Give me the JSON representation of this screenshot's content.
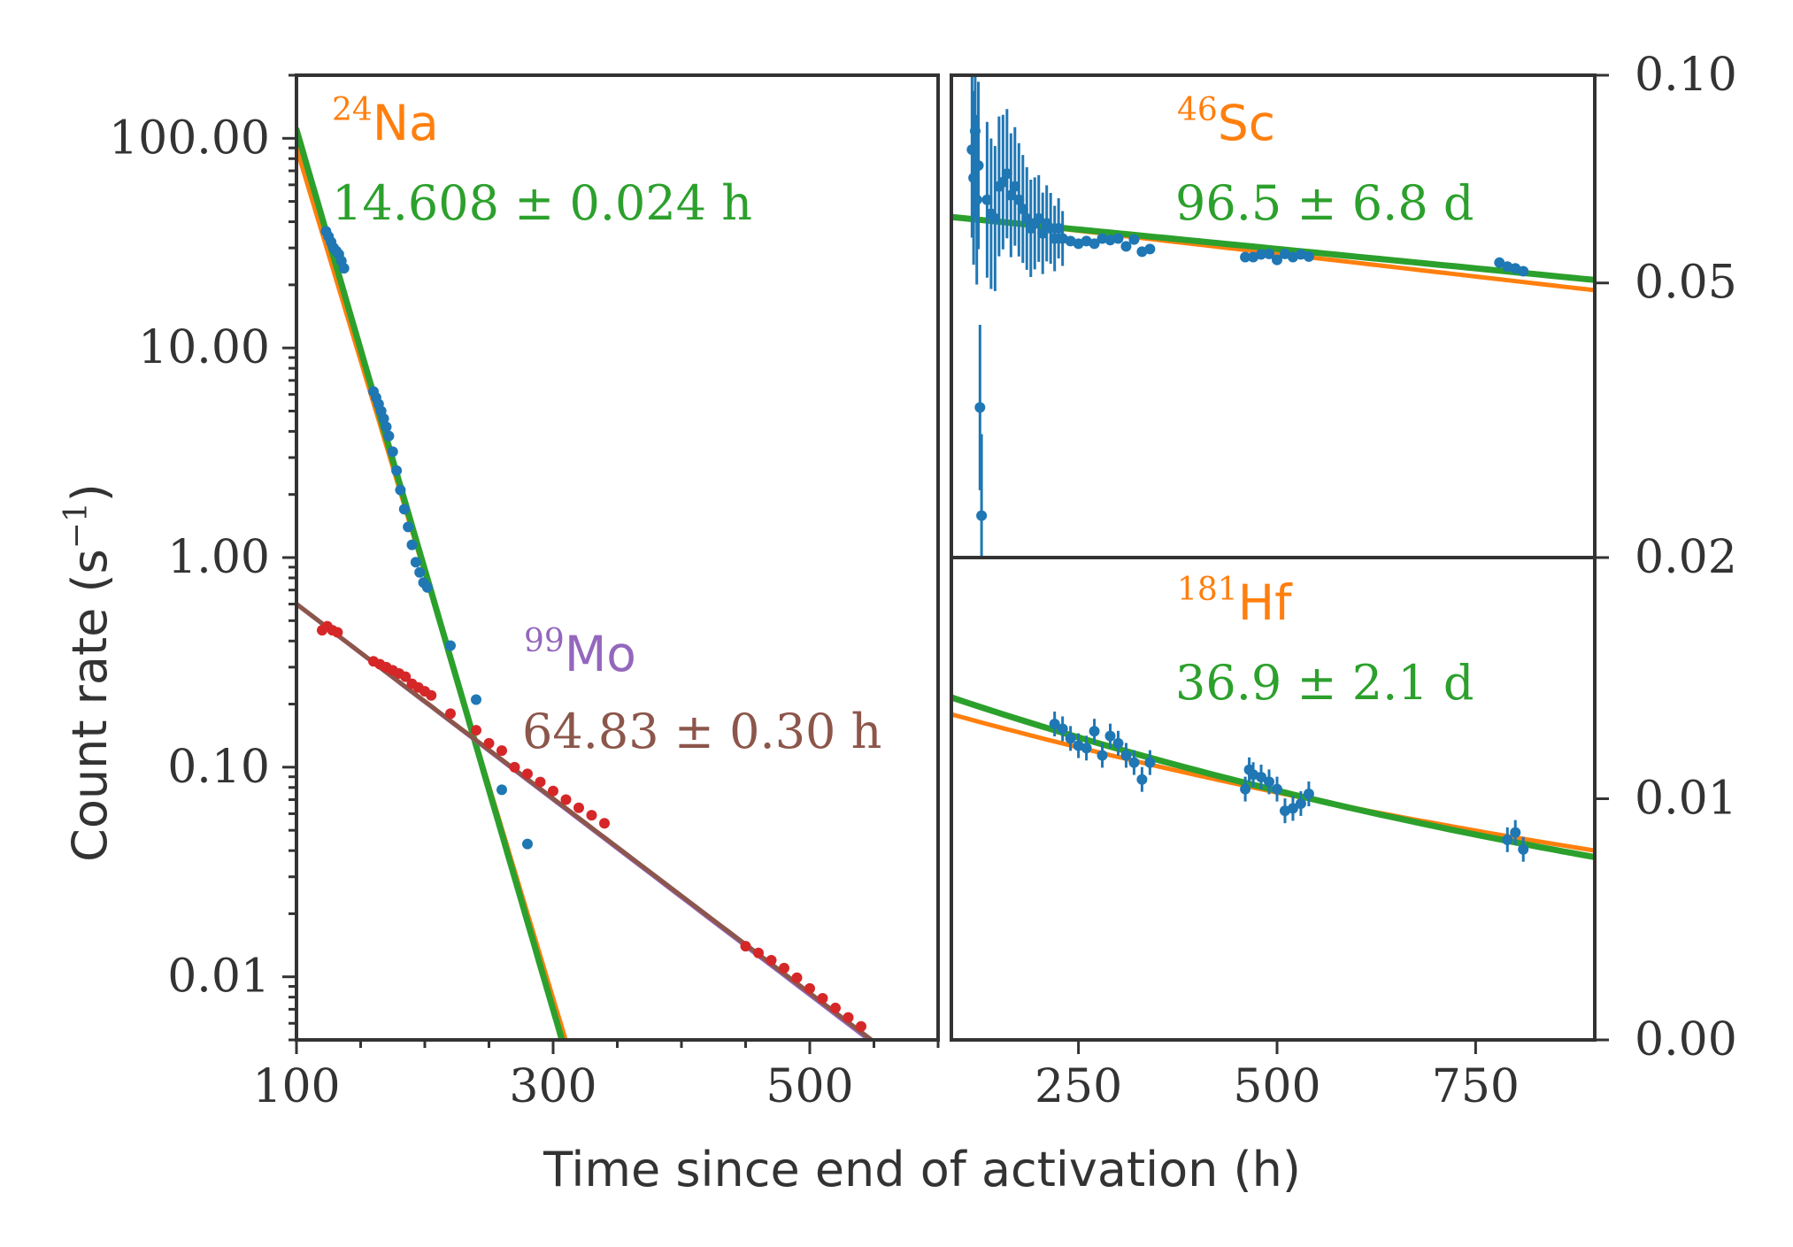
{
  "colors": {
    "blue": "#1f77b4",
    "red": "#d62728",
    "orange": "#ff7f0e",
    "green": "#2ca02c",
    "purple": "#9467bd",
    "brown": "#8c564b",
    "axis": "#333333"
  },
  "figure": {
    "xlabel": "Time since end of activation (h)",
    "ylabel": "Count rate (s",
    "ylabel_sup": "−1",
    "ylabel_close": ")"
  },
  "chart_data": [
    {
      "panel": "left",
      "type": "scatter",
      "xlim": [
        100,
        600
      ],
      "ylim": [
        0.005,
        200
      ],
      "yscale": "log",
      "x_ticks": [
        100,
        300,
        500
      ],
      "x_tick_labels": [
        "100",
        "300",
        "500"
      ],
      "y_ticks": [
        100,
        10,
        1,
        0.1,
        0.01
      ],
      "y_tick_labels": [
        "100.00",
        "10.00",
        "1.00",
        "0.10",
        "0.01"
      ],
      "annotations": [
        {
          "isotope_mass": "24",
          "isotope_symbol": "Na",
          "half_life": "14.608 ± 0.024 h"
        },
        {
          "isotope_mass": "99",
          "isotope_symbol": "Mo",
          "half_life": "64.83 ± 0.30 h"
        }
      ],
      "series": [
        {
          "name": "24Na data",
          "color": "blue",
          "x": [
            123,
            125,
            127,
            129,
            131,
            133,
            135,
            137,
            160,
            162,
            164,
            166,
            168,
            170,
            172,
            175,
            178,
            181,
            184,
            187,
            190,
            193,
            196,
            199,
            202,
            220,
            240,
            260,
            280
          ],
          "y": [
            36,
            34,
            32,
            30,
            29,
            28,
            26,
            24,
            6.2,
            5.8,
            5.4,
            5.0,
            4.6,
            4.2,
            3.8,
            3.2,
            2.6,
            2.1,
            1.7,
            1.4,
            1.15,
            0.95,
            0.85,
            0.76,
            0.72,
            0.38,
            0.21,
            0.078,
            0.043
          ]
        },
        {
          "name": "99Mo data",
          "color": "red",
          "x": [
            120,
            124,
            128,
            132,
            160,
            165,
            170,
            175,
            180,
            185,
            190,
            195,
            200,
            205,
            220,
            240,
            250,
            260,
            270,
            280,
            290,
            300,
            310,
            320,
            330,
            340,
            450,
            460,
            470,
            480,
            490,
            500,
            510,
            520,
            530,
            540
          ],
          "y": [
            0.45,
            0.47,
            0.45,
            0.44,
            0.32,
            0.31,
            0.3,
            0.29,
            0.28,
            0.27,
            0.25,
            0.24,
            0.23,
            0.22,
            0.18,
            0.15,
            0.13,
            0.12,
            0.1,
            0.093,
            0.085,
            0.077,
            0.07,
            0.064,
            0.059,
            0.054,
            0.014,
            0.013,
            0.012,
            0.011,
            0.0099,
            0.0088,
            0.0079,
            0.0071,
            0.0064,
            0.0058
          ]
        },
        {
          "name": "24Na fit (orange)",
          "color": "orange",
          "fit_line": true,
          "x": [
            100,
            313
          ],
          "y": [
            90,
            0.0043
          ]
        },
        {
          "name": "24Na fit (green)",
          "color": "green",
          "fit_line": true,
          "x": [
            100,
            310
          ],
          "y": [
            110,
            0.0043
          ]
        },
        {
          "name": "99Mo fit (purple)",
          "color": "purple",
          "fit_line": true,
          "x": [
            100,
            550
          ],
          "y": [
            0.6,
            0.0048
          ]
        },
        {
          "name": "99Mo fit (brown)",
          "color": "brown",
          "fit_line": true,
          "x": [
            100,
            550
          ],
          "y": [
            0.6,
            0.0049
          ]
        }
      ]
    },
    {
      "panel": "right-top",
      "type": "scatter",
      "xlim": [
        90,
        900
      ],
      "ylim": [
        0.02,
        0.1
      ],
      "yscale": "log",
      "x_ticks": [
        250,
        500,
        750
      ],
      "y_ticks": [
        0.1,
        0.05,
        0.02
      ],
      "y_tick_labels": [
        "0.10",
        "0.05",
        "0.02"
      ],
      "annotations": [
        {
          "isotope_mass": "46",
          "isotope_symbol": "Sc",
          "half_life": "96.5 ± 6.8 d"
        }
      ],
      "series": [
        {
          "name": "46Sc data",
          "color": "blue",
          "x": [
            116,
            118,
            120,
            122,
            124,
            126,
            128,
            135,
            140,
            145,
            150,
            155,
            160,
            165,
            170,
            175,
            180,
            185,
            190,
            195,
            200,
            205,
            210,
            215,
            220,
            225,
            230,
            240,
            250,
            260,
            270,
            280,
            290,
            300,
            310,
            320,
            330,
            340,
            460,
            470,
            480,
            490,
            500,
            510,
            520,
            530,
            540,
            780,
            790,
            800,
            810
          ],
          "y": [
            0.078,
            0.071,
            0.083,
            0.066,
            0.074,
            0.033,
            0.023,
            0.066,
            0.063,
            0.062,
            0.069,
            0.07,
            0.072,
            0.067,
            0.069,
            0.066,
            0.064,
            0.062,
            0.06,
            0.061,
            0.062,
            0.059,
            0.061,
            0.06,
            0.058,
            0.06,
            0.058,
            0.0575,
            0.057,
            0.0575,
            0.057,
            0.058,
            0.0577,
            0.058,
            0.0565,
            0.0578,
            0.0555,
            0.056,
            0.0545,
            0.0545,
            0.055,
            0.0551,
            0.054,
            0.0551,
            0.0545,
            0.055,
            0.0546,
            0.0535,
            0.0528,
            0.0525,
            0.052
          ]
        },
        {
          "name": "46Sc fit (orange)",
          "color": "orange",
          "fit_line": true,
          "x": [
            90,
            900
          ],
          "y": [
            0.0625,
            0.0488
          ]
        },
        {
          "name": "46Sc fit (green)",
          "color": "green",
          "fit_line": true,
          "x": [
            90,
            900
          ],
          "y": [
            0.0623,
            0.0505
          ]
        }
      ]
    },
    {
      "panel": "right-bottom",
      "type": "scatter",
      "xlim": [
        90,
        900
      ],
      "ylim": [
        0,
        0.02
      ],
      "yscale": "linear",
      "x_ticks": [
        250,
        500,
        750
      ],
      "x_tick_labels": [
        "250",
        "500",
        "750"
      ],
      "y_ticks": [
        0.01,
        0.0
      ],
      "y_tick_labels": [
        "0.01",
        "0.00"
      ],
      "annotations": [
        {
          "isotope_mass": "181",
          "isotope_symbol": "Hf",
          "half_life": "36.9 ± 2.1 d"
        }
      ],
      "series": [
        {
          "name": "181Hf data",
          "color": "blue",
          "x": [
            220,
            230,
            240,
            250,
            260,
            270,
            280,
            290,
            300,
            310,
            320,
            330,
            340,
            460,
            465,
            470,
            480,
            490,
            500,
            510,
            520,
            530,
            540,
            790,
            800,
            810
          ],
          "y": [
            0.0131,
            0.0129,
            0.0125,
            0.0122,
            0.0121,
            0.0128,
            0.0118,
            0.0126,
            0.0123,
            0.0118,
            0.0115,
            0.0108,
            0.0115,
            0.0104,
            0.0112,
            0.011,
            0.0109,
            0.0107,
            0.0104,
            0.0095,
            0.0096,
            0.0098,
            0.0102,
            0.0083,
            0.0086,
            0.0079
          ]
        },
        {
          "name": "181Hf fit (orange)",
          "color": "orange",
          "fit_line": true,
          "x": [
            90,
            900
          ],
          "y": [
            0.0135,
            0.00785
          ]
        },
        {
          "name": "181Hf fit (green)",
          "color": "green",
          "fit_line": true,
          "x": [
            90,
            900
          ],
          "y": [
            0.0142,
            0.00758
          ]
        }
      ]
    }
  ]
}
